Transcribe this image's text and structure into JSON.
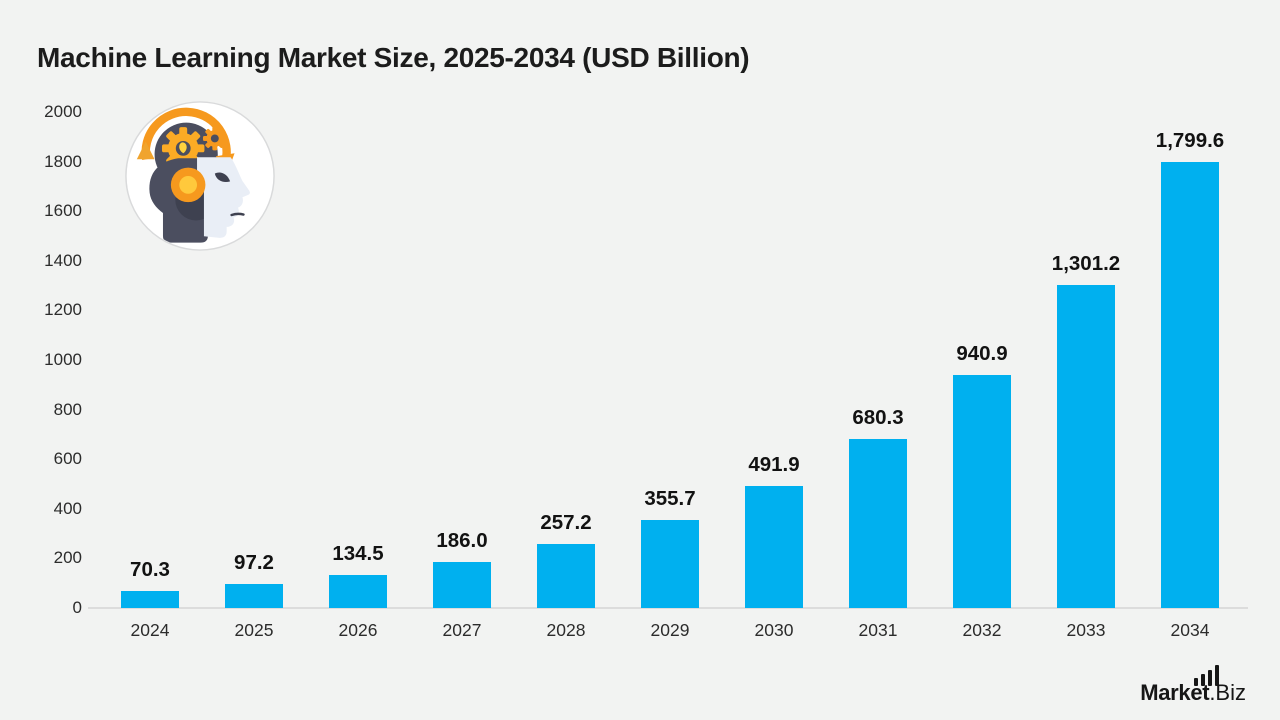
{
  "page": {
    "background_color": "#f2f3f2"
  },
  "chart": {
    "title": "Machine Learning Market Size, 2025-2034 (USD Billion)"
  },
  "chart_data": {
    "type": "bar",
    "title": "Machine Learning Market Size, 2025-2034 (USD Billion)",
    "categories": [
      "2024",
      "2025",
      "2026",
      "2027",
      "2028",
      "2029",
      "2030",
      "2031",
      "2032",
      "2033",
      "2034"
    ],
    "values": [
      70.3,
      97.2,
      134.5,
      186.0,
      257.2,
      355.7,
      491.9,
      680.3,
      940.9,
      1301.2,
      1799.6
    ],
    "value_labels": [
      "70.3",
      "97.2",
      "134.5",
      "186.0",
      "257.2",
      "355.7",
      "491.9",
      "680.3",
      "940.9",
      "1,301.2",
      "1,799.6"
    ],
    "xlabel": "",
    "ylabel": "",
    "ylim": [
      0,
      2000
    ],
    "yticks": [
      0,
      200,
      400,
      600,
      800,
      1000,
      1200,
      1400,
      1600,
      1800,
      2000
    ],
    "grid": false,
    "legend": false,
    "bar_color": "#00b0ef",
    "value_label_color": "#121212",
    "axis_text_color": "#2c2c2c",
    "axis_line_color": "#dcdcdc"
  },
  "branding": {
    "logo_bold": "Market",
    "logo_light": ".Biz",
    "icon_colors": {
      "head": "#4b4e5f",
      "arc_orange": "#f6991e",
      "gear_gold": "#fbab25",
      "gear_center_yellow": "#ffd23e",
      "face_light": "#e9eef6",
      "node_outer": "#f6991e",
      "node_inner": "#ffc93c",
      "shadow_dark": "#3e4150"
    }
  }
}
